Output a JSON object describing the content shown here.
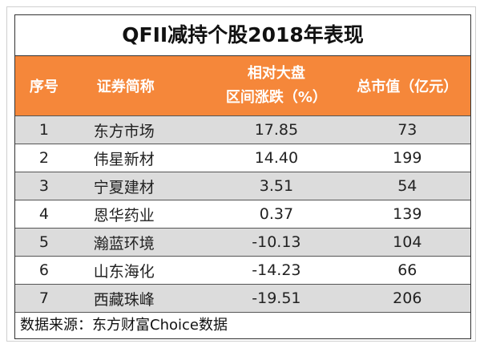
{
  "title": "QFII减持个股2018年表现",
  "table": {
    "header": [
      "序号",
      "证券简称",
      [
        "相对大盘",
        "区间涨跌（%）"
      ],
      "总市值（亿元）"
    ],
    "rows": [
      [
        "1",
        "东方市场",
        "17.85",
        "73"
      ],
      [
        "2",
        "伟星新材",
        "14.40",
        "199"
      ],
      [
        "3",
        "宁夏建材",
        "3.51",
        "54"
      ],
      [
        "4",
        "恩华药业",
        "0.37",
        "139"
      ],
      [
        "5",
        "瀚蓝环境",
        "-10.13",
        "104"
      ],
      [
        "6",
        "山东海化",
        "-14.23",
        "66"
      ],
      [
        "7",
        "西藏珠峰",
        "-19.51",
        "206"
      ]
    ]
  },
  "source": "数据来源：东方财富Choice数据"
}
